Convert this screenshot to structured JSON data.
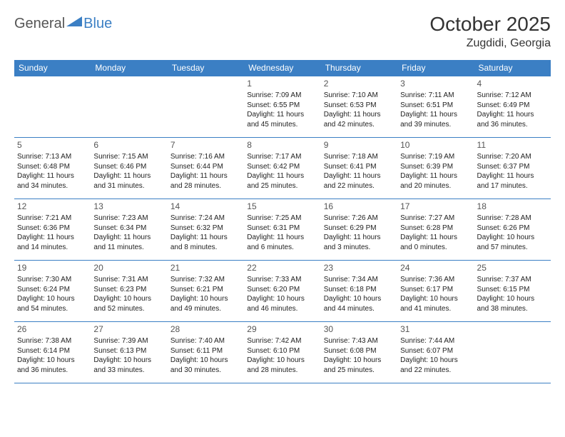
{
  "logo": {
    "text1": "General",
    "text2": "Blue"
  },
  "title": "October 2025",
  "location": "Zugdidi, Georgia",
  "colors": {
    "accent": "#3b7fc4",
    "text": "#333333",
    "daynum": "#555555",
    "bg": "#ffffff"
  },
  "dayHeaders": [
    "Sunday",
    "Monday",
    "Tuesday",
    "Wednesday",
    "Thursday",
    "Friday",
    "Saturday"
  ],
  "weeks": [
    [
      null,
      null,
      null,
      {
        "n": "1",
        "sr": "7:09 AM",
        "ss": "6:55 PM",
        "dl1": "11 hours",
        "dl2": "45 minutes."
      },
      {
        "n": "2",
        "sr": "7:10 AM",
        "ss": "6:53 PM",
        "dl1": "11 hours",
        "dl2": "42 minutes."
      },
      {
        "n": "3",
        "sr": "7:11 AM",
        "ss": "6:51 PM",
        "dl1": "11 hours",
        "dl2": "39 minutes."
      },
      {
        "n": "4",
        "sr": "7:12 AM",
        "ss": "6:49 PM",
        "dl1": "11 hours",
        "dl2": "36 minutes."
      }
    ],
    [
      {
        "n": "5",
        "sr": "7:13 AM",
        "ss": "6:48 PM",
        "dl1": "11 hours",
        "dl2": "34 minutes."
      },
      {
        "n": "6",
        "sr": "7:15 AM",
        "ss": "6:46 PM",
        "dl1": "11 hours",
        "dl2": "31 minutes."
      },
      {
        "n": "7",
        "sr": "7:16 AM",
        "ss": "6:44 PM",
        "dl1": "11 hours",
        "dl2": "28 minutes."
      },
      {
        "n": "8",
        "sr": "7:17 AM",
        "ss": "6:42 PM",
        "dl1": "11 hours",
        "dl2": "25 minutes."
      },
      {
        "n": "9",
        "sr": "7:18 AM",
        "ss": "6:41 PM",
        "dl1": "11 hours",
        "dl2": "22 minutes."
      },
      {
        "n": "10",
        "sr": "7:19 AM",
        "ss": "6:39 PM",
        "dl1": "11 hours",
        "dl2": "20 minutes."
      },
      {
        "n": "11",
        "sr": "7:20 AM",
        "ss": "6:37 PM",
        "dl1": "11 hours",
        "dl2": "17 minutes."
      }
    ],
    [
      {
        "n": "12",
        "sr": "7:21 AM",
        "ss": "6:36 PM",
        "dl1": "11 hours",
        "dl2": "14 minutes."
      },
      {
        "n": "13",
        "sr": "7:23 AM",
        "ss": "6:34 PM",
        "dl1": "11 hours",
        "dl2": "11 minutes."
      },
      {
        "n": "14",
        "sr": "7:24 AM",
        "ss": "6:32 PM",
        "dl1": "11 hours",
        "dl2": "8 minutes."
      },
      {
        "n": "15",
        "sr": "7:25 AM",
        "ss": "6:31 PM",
        "dl1": "11 hours",
        "dl2": "6 minutes."
      },
      {
        "n": "16",
        "sr": "7:26 AM",
        "ss": "6:29 PM",
        "dl1": "11 hours",
        "dl2": "3 minutes."
      },
      {
        "n": "17",
        "sr": "7:27 AM",
        "ss": "6:28 PM",
        "dl1": "11 hours",
        "dl2": "0 minutes."
      },
      {
        "n": "18",
        "sr": "7:28 AM",
        "ss": "6:26 PM",
        "dl1": "10 hours",
        "dl2": "57 minutes."
      }
    ],
    [
      {
        "n": "19",
        "sr": "7:30 AM",
        "ss": "6:24 PM",
        "dl1": "10 hours",
        "dl2": "54 minutes."
      },
      {
        "n": "20",
        "sr": "7:31 AM",
        "ss": "6:23 PM",
        "dl1": "10 hours",
        "dl2": "52 minutes."
      },
      {
        "n": "21",
        "sr": "7:32 AM",
        "ss": "6:21 PM",
        "dl1": "10 hours",
        "dl2": "49 minutes."
      },
      {
        "n": "22",
        "sr": "7:33 AM",
        "ss": "6:20 PM",
        "dl1": "10 hours",
        "dl2": "46 minutes."
      },
      {
        "n": "23",
        "sr": "7:34 AM",
        "ss": "6:18 PM",
        "dl1": "10 hours",
        "dl2": "44 minutes."
      },
      {
        "n": "24",
        "sr": "7:36 AM",
        "ss": "6:17 PM",
        "dl1": "10 hours",
        "dl2": "41 minutes."
      },
      {
        "n": "25",
        "sr": "7:37 AM",
        "ss": "6:15 PM",
        "dl1": "10 hours",
        "dl2": "38 minutes."
      }
    ],
    [
      {
        "n": "26",
        "sr": "7:38 AM",
        "ss": "6:14 PM",
        "dl1": "10 hours",
        "dl2": "36 minutes."
      },
      {
        "n": "27",
        "sr": "7:39 AM",
        "ss": "6:13 PM",
        "dl1": "10 hours",
        "dl2": "33 minutes."
      },
      {
        "n": "28",
        "sr": "7:40 AM",
        "ss": "6:11 PM",
        "dl1": "10 hours",
        "dl2": "30 minutes."
      },
      {
        "n": "29",
        "sr": "7:42 AM",
        "ss": "6:10 PM",
        "dl1": "10 hours",
        "dl2": "28 minutes."
      },
      {
        "n": "30",
        "sr": "7:43 AM",
        "ss": "6:08 PM",
        "dl1": "10 hours",
        "dl2": "25 minutes."
      },
      {
        "n": "31",
        "sr": "7:44 AM",
        "ss": "6:07 PM",
        "dl1": "10 hours",
        "dl2": "22 minutes."
      },
      null
    ]
  ],
  "labels": {
    "sunrise": "Sunrise:",
    "sunset": "Sunset:",
    "daylight": "Daylight:",
    "and": "and"
  }
}
